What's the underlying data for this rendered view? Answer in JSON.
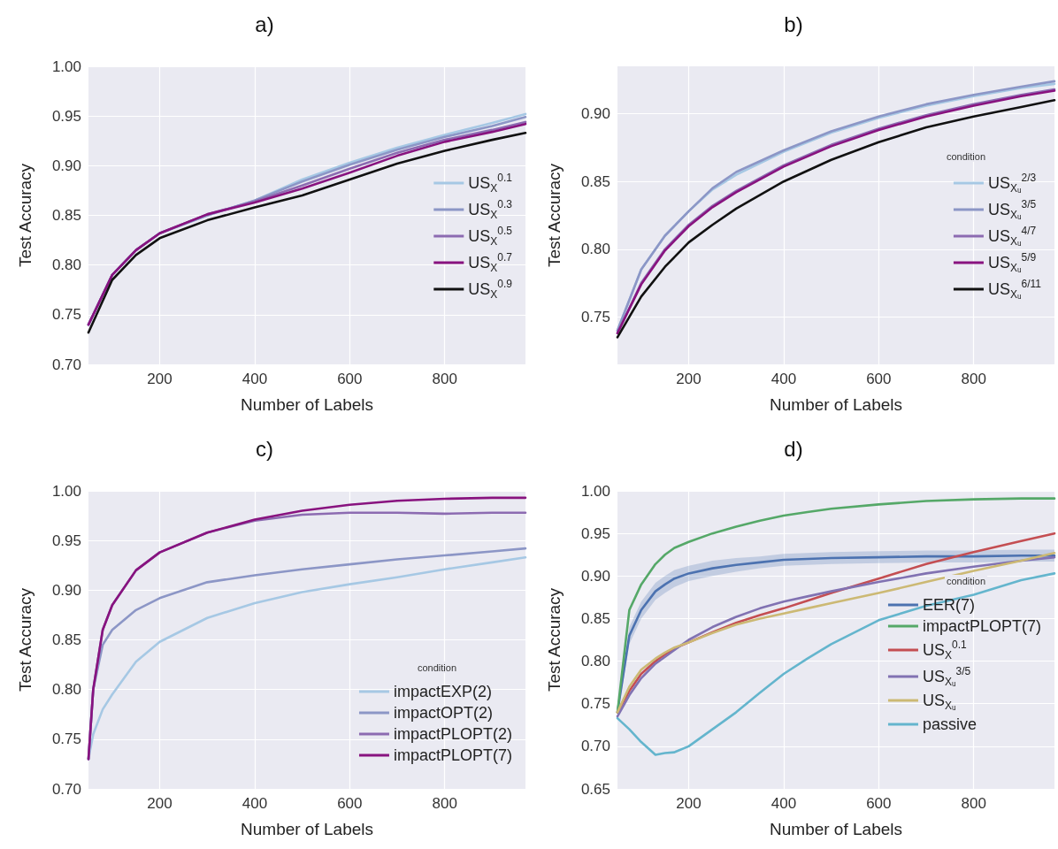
{
  "chart_data": [
    {
      "type": "line",
      "title": "a)",
      "xlabel": "Number of Labels",
      "ylabel": "Test Accuracy",
      "xlim": [
        50,
        970
      ],
      "xticks": [
        200,
        400,
        600,
        800
      ],
      "ylim": [
        0.7,
        1.0
      ],
      "yticks": [
        {
          "value": 0.7,
          "label": "0.70"
        },
        0.75,
        {
          "value": 0.8,
          "label": "0.80"
        },
        0.85,
        {
          "value": 0.9,
          "label": "0.90"
        },
        0.95,
        {
          "value": 1.0,
          "label": "1.00"
        }
      ],
      "grid": true,
      "legend": "right",
      "marker": "none",
      "line_style": "solid",
      "x": [
        50,
        100,
        150,
        200,
        300,
        400,
        500,
        600,
        700,
        800,
        900,
        970
      ],
      "series": [
        {
          "name": "US$_{X}$$^{0.1}$",
          "color": "#a6c8e4",
          "values": [
            0.74,
            0.79,
            0.815,
            0.832,
            0.85,
            0.865,
            0.886,
            0.903,
            0.918,
            0.931,
            0.943,
            0.952
          ]
        },
        {
          "name": "US$_{X}$$^{0.3}$",
          "color": "#8c96c6",
          "values": [
            0.74,
            0.79,
            0.815,
            0.832,
            0.85,
            0.865,
            0.884,
            0.901,
            0.916,
            0.929,
            0.94,
            0.949
          ]
        },
        {
          "name": "US$_{X}$$^{0.5}$",
          "color": "#8c6bb1",
          "values": [
            0.74,
            0.79,
            0.815,
            0.832,
            0.851,
            0.864,
            0.88,
            0.897,
            0.913,
            0.926,
            0.936,
            0.944
          ]
        },
        {
          "name": "US$_{X}$$^{0.7}$",
          "color": "#88137f",
          "values": [
            0.74,
            0.79,
            0.815,
            0.832,
            0.851,
            0.863,
            0.877,
            0.893,
            0.91,
            0.924,
            0.934,
            0.942
          ]
        },
        {
          "name": "US$_{X}$$^{0.9}$",
          "color": "#111111",
          "values": [
            0.732,
            0.785,
            0.81,
            0.827,
            0.845,
            0.858,
            0.87,
            0.886,
            0.902,
            0.915,
            0.926,
            0.933
          ]
        }
      ]
    },
    {
      "type": "line",
      "title": "b)",
      "xlabel": "Number of Labels",
      "ylabel": "Test Accuracy",
      "legend_title": "condition",
      "xlim": [
        50,
        970
      ],
      "xticks": [
        200,
        400,
        600,
        800
      ],
      "ylim": [
        0.715,
        0.935
      ],
      "yticks": [
        0.75,
        {
          "value": 0.8,
          "label": "0.80"
        },
        0.85,
        {
          "value": 0.9,
          "label": "0.90"
        }
      ],
      "grid": true,
      "legend": "right",
      "marker": "none",
      "line_style": "solid",
      "x": [
        50,
        100,
        150,
        200,
        250,
        300,
        400,
        500,
        600,
        700,
        800,
        900,
        970
      ],
      "series": [
        {
          "name": "US$_{Xᵤ}$$^{2/3}$",
          "color": "#a6c8e4",
          "values": [
            0.74,
            0.785,
            0.81,
            0.828,
            0.844,
            0.855,
            0.872,
            0.886,
            0.897,
            0.906,
            0.913,
            0.919,
            0.922
          ]
        },
        {
          "name": "US$_{Xᵤ}$$^{3/5}$",
          "color": "#8c96c6",
          "values": [
            0.74,
            0.785,
            0.81,
            0.828,
            0.845,
            0.857,
            0.873,
            0.887,
            0.898,
            0.907,
            0.914,
            0.92,
            0.924
          ]
        },
        {
          "name": "US$_{Xᵤ}$$^{4/7}$",
          "color": "#8c6bb1",
          "values": [
            0.738,
            0.775,
            0.8,
            0.818,
            0.832,
            0.843,
            0.862,
            0.877,
            0.889,
            0.899,
            0.907,
            0.914,
            0.918
          ]
        },
        {
          "name": "US$_{Xᵤ}$$^{5/9}$",
          "color": "#88137f",
          "values": [
            0.738,
            0.774,
            0.799,
            0.817,
            0.831,
            0.842,
            0.861,
            0.876,
            0.888,
            0.898,
            0.906,
            0.913,
            0.917
          ]
        },
        {
          "name": "US$_{Xᵤ}$$^{6/11}$",
          "color": "#111111",
          "values": [
            0.735,
            0.765,
            0.787,
            0.805,
            0.818,
            0.83,
            0.85,
            0.866,
            0.879,
            0.89,
            0.898,
            0.905,
            0.91
          ]
        }
      ]
    },
    {
      "type": "line",
      "title": "c)",
      "xlabel": "Number of Labels",
      "ylabel": "Test Accuracy",
      "legend_title": "condition",
      "xlim": [
        50,
        970
      ],
      "xticks": [
        200,
        400,
        600,
        800
      ],
      "ylim": [
        0.7,
        1.0
      ],
      "yticks": [
        {
          "value": 0.7,
          "label": "0.70"
        },
        0.75,
        {
          "value": 0.8,
          "label": "0.80"
        },
        0.85,
        {
          "value": 0.9,
          "label": "0.90"
        },
        0.95,
        {
          "value": 1.0,
          "label": "1.00"
        }
      ],
      "grid": true,
      "legend": "bottom right",
      "marker": "none",
      "line_style": "solid",
      "x": [
        50,
        60,
        80,
        100,
        150,
        200,
        300,
        400,
        500,
        600,
        700,
        800,
        900,
        970
      ],
      "series": [
        {
          "name": "impactEXP(2)",
          "color": "#a6c8e4",
          "values": [
            0.73,
            0.755,
            0.78,
            0.795,
            0.828,
            0.848,
            0.872,
            0.887,
            0.898,
            0.906,
            0.913,
            0.921,
            0.928,
            0.933
          ]
        },
        {
          "name": "impactOPT(2)",
          "color": "#8c96c6",
          "values": [
            0.73,
            0.8,
            0.845,
            0.86,
            0.88,
            0.892,
            0.908,
            0.915,
            0.921,
            0.926,
            0.931,
            0.935,
            0.939,
            0.942
          ]
        },
        {
          "name": "impactPLOPT(2)",
          "color": "#8c6bb1",
          "values": [
            0.73,
            0.8,
            0.86,
            0.885,
            0.92,
            0.938,
            0.958,
            0.97,
            0.976,
            0.978,
            0.978,
            0.977,
            0.978,
            0.978
          ]
        },
        {
          "name": "impactPLOPT(7)",
          "color": "#88137f",
          "values": [
            0.73,
            0.8,
            0.86,
            0.885,
            0.92,
            0.938,
            0.958,
            0.971,
            0.98,
            0.986,
            0.99,
            0.992,
            0.993,
            0.993
          ]
        }
      ]
    },
    {
      "type": "line",
      "title": "d)",
      "xlabel": "Number of Labels",
      "ylabel": "Test Accuracy",
      "legend_title": "condition",
      "xlim": [
        50,
        970
      ],
      "xticks": [
        200,
        400,
        600,
        800
      ],
      "ylim": [
        0.65,
        1.0
      ],
      "yticks": [
        0.65,
        {
          "value": 0.7,
          "label": "0.70"
        },
        0.75,
        {
          "value": 0.8,
          "label": "0.80"
        },
        0.85,
        {
          "value": 0.9,
          "label": "0.90"
        },
        0.95,
        {
          "value": 1.0,
          "label": "1.00"
        }
      ],
      "grid": true,
      "legend": "right",
      "marker": "none",
      "line_style": "solid",
      "x": [
        50,
        75,
        100,
        130,
        150,
        170,
        200,
        250,
        300,
        350,
        400,
        450,
        500,
        600,
        700,
        800,
        900,
        970
      ],
      "series": [
        {
          "name": "EER(7)",
          "color": "#4c72b0",
          "values": [
            0.74,
            0.83,
            0.86,
            0.882,
            0.89,
            0.897,
            0.903,
            0.909,
            0.913,
            0.916,
            0.919,
            0.92,
            0.921,
            0.922,
            0.923,
            0.923,
            0.924,
            0.924
          ],
          "lower": [
            0.735,
            0.82,
            0.85,
            0.872,
            0.88,
            0.887,
            0.894,
            0.9,
            0.905,
            0.909,
            0.912,
            0.913,
            0.914,
            0.915,
            0.916,
            0.916,
            0.917,
            0.917
          ],
          "upper": [
            0.745,
            0.84,
            0.87,
            0.892,
            0.9,
            0.907,
            0.912,
            0.918,
            0.921,
            0.923,
            0.926,
            0.927,
            0.928,
            0.929,
            0.93,
            0.93,
            0.931,
            0.931
          ]
        },
        {
          "name": "impactPLOPT(7)",
          "color": "#55a868",
          "values": [
            0.74,
            0.86,
            0.89,
            0.914,
            0.925,
            0.933,
            0.94,
            0.95,
            0.958,
            0.965,
            0.971,
            0.975,
            0.979,
            0.984,
            0.988,
            0.99,
            0.991,
            0.991
          ]
        },
        {
          "name": "US$_{X}$$^{0.1}$",
          "color": "#c44e52",
          "values": [
            0.74,
            0.765,
            0.785,
            0.8,
            0.808,
            0.815,
            0.822,
            0.834,
            0.845,
            0.854,
            0.862,
            0.871,
            0.88,
            0.897,
            0.914,
            0.928,
            0.941,
            0.95
          ]
        },
        {
          "name": "US$_{Xᵤ}$$^{3/5}$",
          "color": "#8172b2",
          "values": [
            0.735,
            0.76,
            0.78,
            0.797,
            0.805,
            0.813,
            0.825,
            0.84,
            0.852,
            0.862,
            0.87,
            0.876,
            0.882,
            0.893,
            0.903,
            0.911,
            0.918,
            0.922
          ]
        },
        {
          "name": "US$_{Xᵤ}$",
          "color": "#ccb974",
          "values": [
            0.74,
            0.77,
            0.79,
            0.803,
            0.81,
            0.816,
            0.822,
            0.833,
            0.843,
            0.85,
            0.856,
            0.862,
            0.868,
            0.88,
            0.893,
            0.906,
            0.918,
            0.927
          ]
        },
        {
          "name": "passive",
          "color": "#64b5cd",
          "values": [
            0.733,
            0.72,
            0.705,
            0.69,
            0.692,
            0.693,
            0.7,
            0.72,
            0.74,
            0.763,
            0.785,
            0.803,
            0.82,
            0.848,
            0.865,
            0.878,
            0.895,
            0.903
          ]
        }
      ]
    }
  ]
}
